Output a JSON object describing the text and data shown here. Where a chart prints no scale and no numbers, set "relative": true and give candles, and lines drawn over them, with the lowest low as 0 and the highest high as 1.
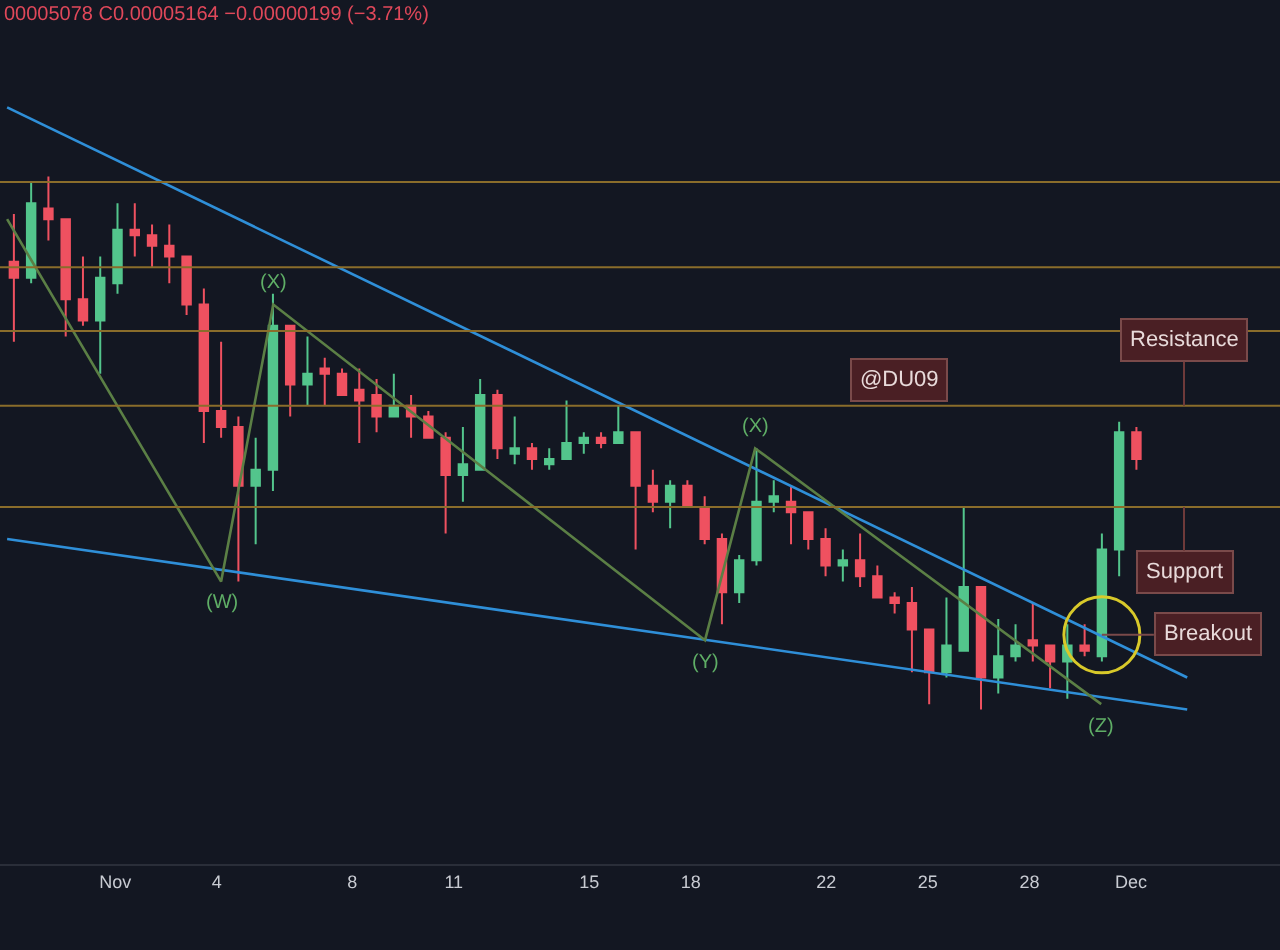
{
  "chart_data": {
    "type": "candlestick",
    "relative": true,
    "x": [
      -1.99,
      -1.48,
      -0.97,
      -0.46,
      0.05,
      0.56,
      1.07,
      1.58,
      2.09,
      2.6,
      3.11,
      3.62,
      4.13,
      4.64,
      5.15,
      5.66,
      6.17,
      6.68,
      7.19,
      7.7,
      8.21,
      8.72,
      9.23,
      9.74,
      10.25,
      10.76,
      11.27,
      11.78,
      12.29,
      12.8,
      13.31,
      13.82,
      14.33,
      14.84,
      15.35,
      15.86,
      16.37,
      16.88,
      17.39,
      17.9,
      18.41,
      18.92,
      19.43,
      19.94,
      20.45,
      20.96,
      21.47,
      21.98,
      22.49,
      23.0,
      23.51,
      24.02,
      24.53,
      25.04,
      25.55,
      26.06,
      26.57,
      27.08,
      27.59,
      28.1,
      28.61,
      29.12,
      29.63,
      30.14,
      30.65,
      31.16
    ],
    "ohlc": [
      [
        0.84,
        0.93,
        0.69,
        0.81
      ],
      [
        0.81,
        0.99,
        0.8,
        0.95
      ],
      [
        0.94,
        1.0,
        0.88,
        0.92
      ],
      [
        0.92,
        0.92,
        0.7,
        0.77
      ],
      [
        0.77,
        0.85,
        0.72,
        0.73
      ],
      [
        0.73,
        0.85,
        0.63,
        0.81
      ],
      [
        0.8,
        0.95,
        0.78,
        0.9
      ],
      [
        0.9,
        0.95,
        0.85,
        0.89
      ],
      [
        0.89,
        0.91,
        0.83,
        0.87
      ],
      [
        0.87,
        0.91,
        0.8,
        0.85
      ],
      [
        0.85,
        0.85,
        0.74,
        0.76
      ],
      [
        0.76,
        0.79,
        0.5,
        0.56
      ],
      [
        0.56,
        0.69,
        0.51,
        0.53
      ],
      [
        0.53,
        0.55,
        0.24,
        0.42
      ],
      [
        0.42,
        0.51,
        0.31,
        0.45
      ],
      [
        0.45,
        0.78,
        0.41,
        0.72
      ],
      [
        0.72,
        0.72,
        0.55,
        0.61
      ],
      [
        0.61,
        0.7,
        0.57,
        0.63
      ],
      [
        0.64,
        0.66,
        0.57,
        0.63
      ],
      [
        0.63,
        0.64,
        0.59,
        0.59
      ],
      [
        0.6,
        0.64,
        0.5,
        0.58
      ],
      [
        0.59,
        0.62,
        0.52,
        0.55
      ],
      [
        0.55,
        0.63,
        0.55,
        0.57
      ],
      [
        0.57,
        0.59,
        0.51,
        0.55
      ],
      [
        0.55,
        0.56,
        0.51,
        0.51
      ],
      [
        0.51,
        0.52,
        0.33,
        0.44
      ],
      [
        0.44,
        0.53,
        0.39,
        0.46
      ],
      [
        0.45,
        0.62,
        0.45,
        0.59
      ],
      [
        0.59,
        0.6,
        0.47,
        0.49
      ],
      [
        0.48,
        0.55,
        0.46,
        0.49
      ],
      [
        0.49,
        0.5,
        0.45,
        0.47
      ],
      [
        0.46,
        0.49,
        0.45,
        0.47
      ],
      [
        0.47,
        0.58,
        0.47,
        0.5
      ],
      [
        0.5,
        0.52,
        0.48,
        0.51
      ],
      [
        0.51,
        0.52,
        0.49,
        0.5
      ],
      [
        0.5,
        0.57,
        0.5,
        0.52
      ],
      [
        0.52,
        0.52,
        0.3,
        0.42
      ],
      [
        0.42,
        0.45,
        0.37,
        0.39
      ],
      [
        0.39,
        0.43,
        0.34,
        0.42
      ],
      [
        0.42,
        0.43,
        0.38,
        0.38
      ],
      [
        0.38,
        0.4,
        0.31,
        0.32
      ],
      [
        0.32,
        0.33,
        0.16,
        0.22
      ],
      [
        0.22,
        0.29,
        0.2,
        0.28
      ],
      [
        0.28,
        0.49,
        0.27,
        0.39
      ],
      [
        0.39,
        0.43,
        0.37,
        0.4
      ],
      [
        0.39,
        0.42,
        0.31,
        0.37
      ],
      [
        0.37,
        0.37,
        0.3,
        0.32
      ],
      [
        0.32,
        0.34,
        0.25,
        0.27
      ],
      [
        0.27,
        0.3,
        0.24,
        0.28
      ],
      [
        0.28,
        0.33,
        0.23,
        0.25
      ],
      [
        0.25,
        0.27,
        0.21,
        0.21
      ],
      [
        0.21,
        0.22,
        0.18,
        0.2
      ],
      [
        0.2,
        0.23,
        0.07,
        0.15
      ],
      [
        0.15,
        0.15,
        0.01,
        0.07
      ],
      [
        0.07,
        0.21,
        0.06,
        0.12
      ],
      [
        0.11,
        0.38,
        0.11,
        0.23
      ],
      [
        0.23,
        0.23,
        0.0,
        0.06
      ],
      [
        0.06,
        0.17,
        0.03,
        0.1
      ],
      [
        0.1,
        0.16,
        0.09,
        0.12
      ],
      [
        0.13,
        0.2,
        0.09,
        0.12
      ],
      [
        0.12,
        0.12,
        0.04,
        0.09
      ],
      [
        0.09,
        0.16,
        0.02,
        0.12
      ],
      [
        0.12,
        0.16,
        0.1,
        0.11
      ],
      [
        0.1,
        0.33,
        0.09,
        0.3
      ],
      [
        0.3,
        0.54,
        0.25,
        0.52
      ],
      [
        0.52,
        0.53,
        0.45,
        0.47
      ]
    ],
    "xlim": [
      -2.4,
      35.4
    ],
    "xticks": [
      {
        "value": 1,
        "label": "Nov"
      },
      4,
      8,
      11,
      15,
      18,
      22,
      25,
      28,
      {
        "value": 31,
        "label": "Dec"
      }
    ],
    "series": [
      {
        "type": "line",
        "color": "#2f8fd8",
        "x": [
          -2.19,
          32.66
        ],
        "values": [
          1.13,
          0.06
        ]
      },
      {
        "type": "line",
        "color": "#2f8fd8",
        "x": [
          -2.19,
          32.66
        ],
        "values": [
          0.32,
          0.0
        ]
      },
      {
        "type": "line",
        "color": "#5b7f45",
        "x": [
          -2.19,
          4.13,
          5.67,
          18.42,
          19.9,
          30.12
        ],
        "values": [
          0.92,
          0.24,
          0.76,
          0.13,
          0.49,
          0.01
        ]
      }
    ],
    "ref_lines": [
      {
        "axis": "y",
        "value": 0.99,
        "color": "#8a6d2b"
      },
      {
        "axis": "y",
        "value": 0.83,
        "color": "#8a6d2b"
      },
      {
        "axis": "y",
        "value": 0.71,
        "color": "#8a6d2b"
      },
      {
        "axis": "y",
        "value": 0.57,
        "color": "#8a6d2b",
        "label": "Resistance"
      },
      {
        "axis": "y",
        "value": 0.38,
        "color": "#8a6d2b",
        "label": "Support"
      }
    ],
    "annotations": [
      "00005078 C0.00005164 −0.00000199 (−3.71%)",
      "@DU09",
      {
        "text": "Breakout",
        "x": 30.14,
        "y": 0.14
      },
      {
        "text": "(W)",
        "x": 4.13,
        "y": 0.24
      },
      {
        "text": "(X)",
        "x": 5.67,
        "y": 0.76
      },
      {
        "text": "(Y)",
        "x": 18.42,
        "y": 0.13
      },
      {
        "text": "(X)",
        "x": 19.9,
        "y": 0.49
      },
      {
        "text": "(Z)",
        "x": 30.12,
        "y": 0.01
      }
    ]
  }
}
